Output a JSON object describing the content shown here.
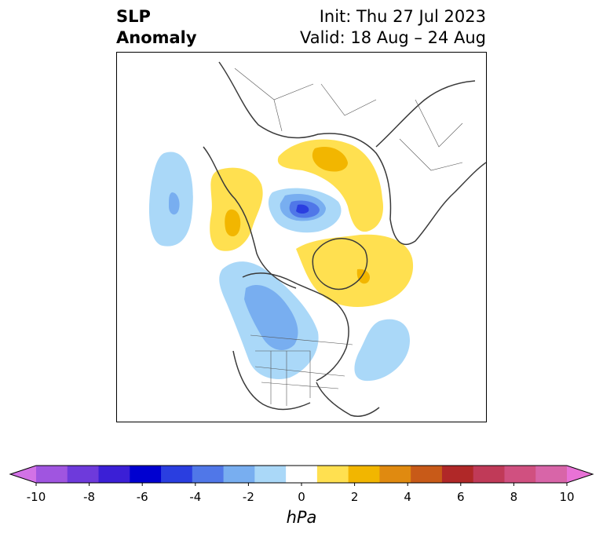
{
  "title": {
    "left_line1": "SLP",
    "left_line2": "Anomaly",
    "right_line1": "Init: Thu 27 Jul 2023",
    "right_line2": "Valid: 18 Aug – 24 Aug"
  },
  "colorbar": {
    "unit": "hPa",
    "tick_labels": [
      "-10",
      "-8",
      "-6",
      "-4",
      "-2",
      "0",
      "2",
      "4",
      "6",
      "8",
      "10"
    ],
    "colors": [
      "#d272e6",
      "#a055e0",
      "#6e3adb",
      "#3b1fd6",
      "#0000d0",
      "#2a3ee0",
      "#5077e8",
      "#78aef0",
      "#aad8f8",
      "#ffffff",
      "#ffe050",
      "#f2b600",
      "#e08a10",
      "#c85a18",
      "#b02828",
      "#c03a58",
      "#d05080",
      "#d865a8",
      "#e872d6"
    ]
  },
  "map": {
    "projection": "north polar stereographic",
    "palette": {
      "neg_light": "#aad8f8",
      "neg_mid": "#78aef0",
      "neg_strong": "#5077e8",
      "neg_deep": "#2a3ee0",
      "pos_light": "#ffe050",
      "pos_mid": "#f2b600",
      "coast": "#3a3a3a"
    }
  }
}
